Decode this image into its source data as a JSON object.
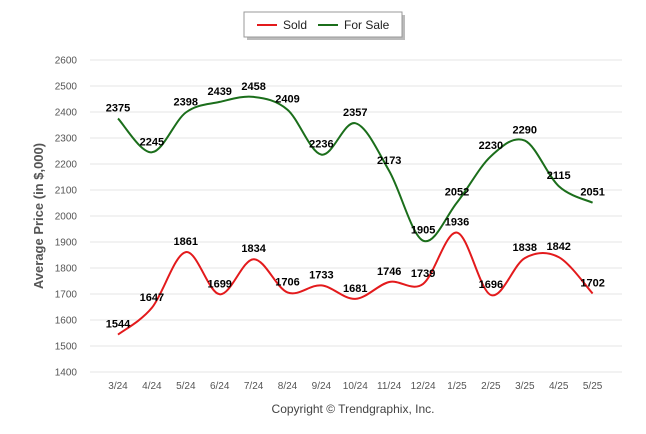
{
  "chart_data": {
    "type": "line",
    "categories": [
      "3/24",
      "4/24",
      "5/24",
      "6/24",
      "7/24",
      "8/24",
      "9/24",
      "10/24",
      "11/24",
      "12/24",
      "1/25",
      "2/25",
      "3/25",
      "4/25",
      "5/25"
    ],
    "series": [
      {
        "name": "Sold",
        "color": "#e31a1c",
        "values": [
          1544,
          1647,
          1861,
          1699,
          1834,
          1706,
          1733,
          1681,
          1746,
          1739,
          1936,
          1696,
          1838,
          1842,
          1702
        ]
      },
      {
        "name": "For Sale",
        "color": "#1b6e1b",
        "values": [
          2375,
          2245,
          2398,
          2439,
          2458,
          2409,
          2236,
          2357,
          2173,
          1905,
          2052,
          2230,
          2290,
          2115,
          2051
        ]
      }
    ],
    "ylabel": "Average Price (in $,000)",
    "xlabel": "",
    "ylim": [
      1400,
      2600
    ],
    "yticks": [
      1400,
      1500,
      1600,
      1700,
      1800,
      1900,
      2000,
      2100,
      2200,
      2300,
      2400,
      2500,
      2600
    ],
    "grid": true,
    "legend_position": "top-center",
    "smooth": true
  },
  "footer": {
    "copyright": "Copyright © Trendgraphix, Inc."
  }
}
